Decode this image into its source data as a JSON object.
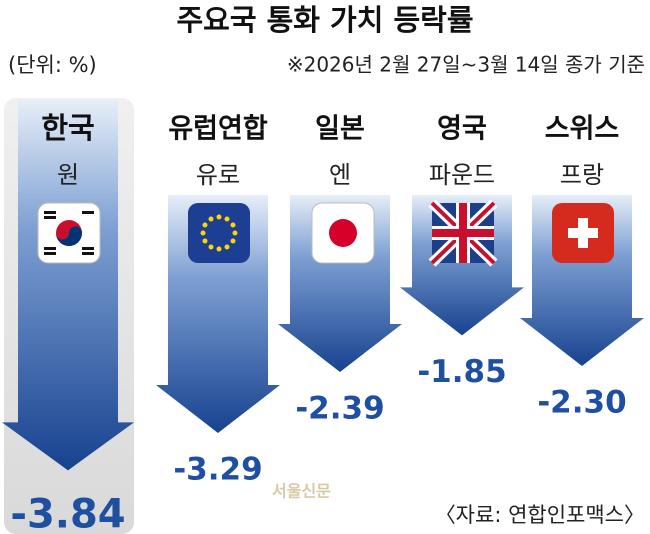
{
  "chart_data": {
    "type": "arrow-bar",
    "title": "주요국 통화 가치 등락률",
    "unit_note": "(단위: %)",
    "period_note": "※2026년 2월 27일~3월 14일 종가 기준",
    "categories": [
      "한국",
      "유럽연합",
      "일본",
      "영국",
      "스위스"
    ],
    "currencies": [
      "원",
      "유로",
      "엔",
      "파운드",
      "프랑"
    ],
    "values": [
      -3.84,
      -3.29,
      -2.39,
      -1.85,
      -2.3
    ],
    "value_labels": [
      "-3.84",
      "-3.29",
      "-2.39",
      "-1.85",
      "-2.30"
    ],
    "color": "#1f4fa0",
    "highlight": "한국",
    "source": "〈자료: 연합인포맥스〉",
    "watermark": "서울신문"
  }
}
